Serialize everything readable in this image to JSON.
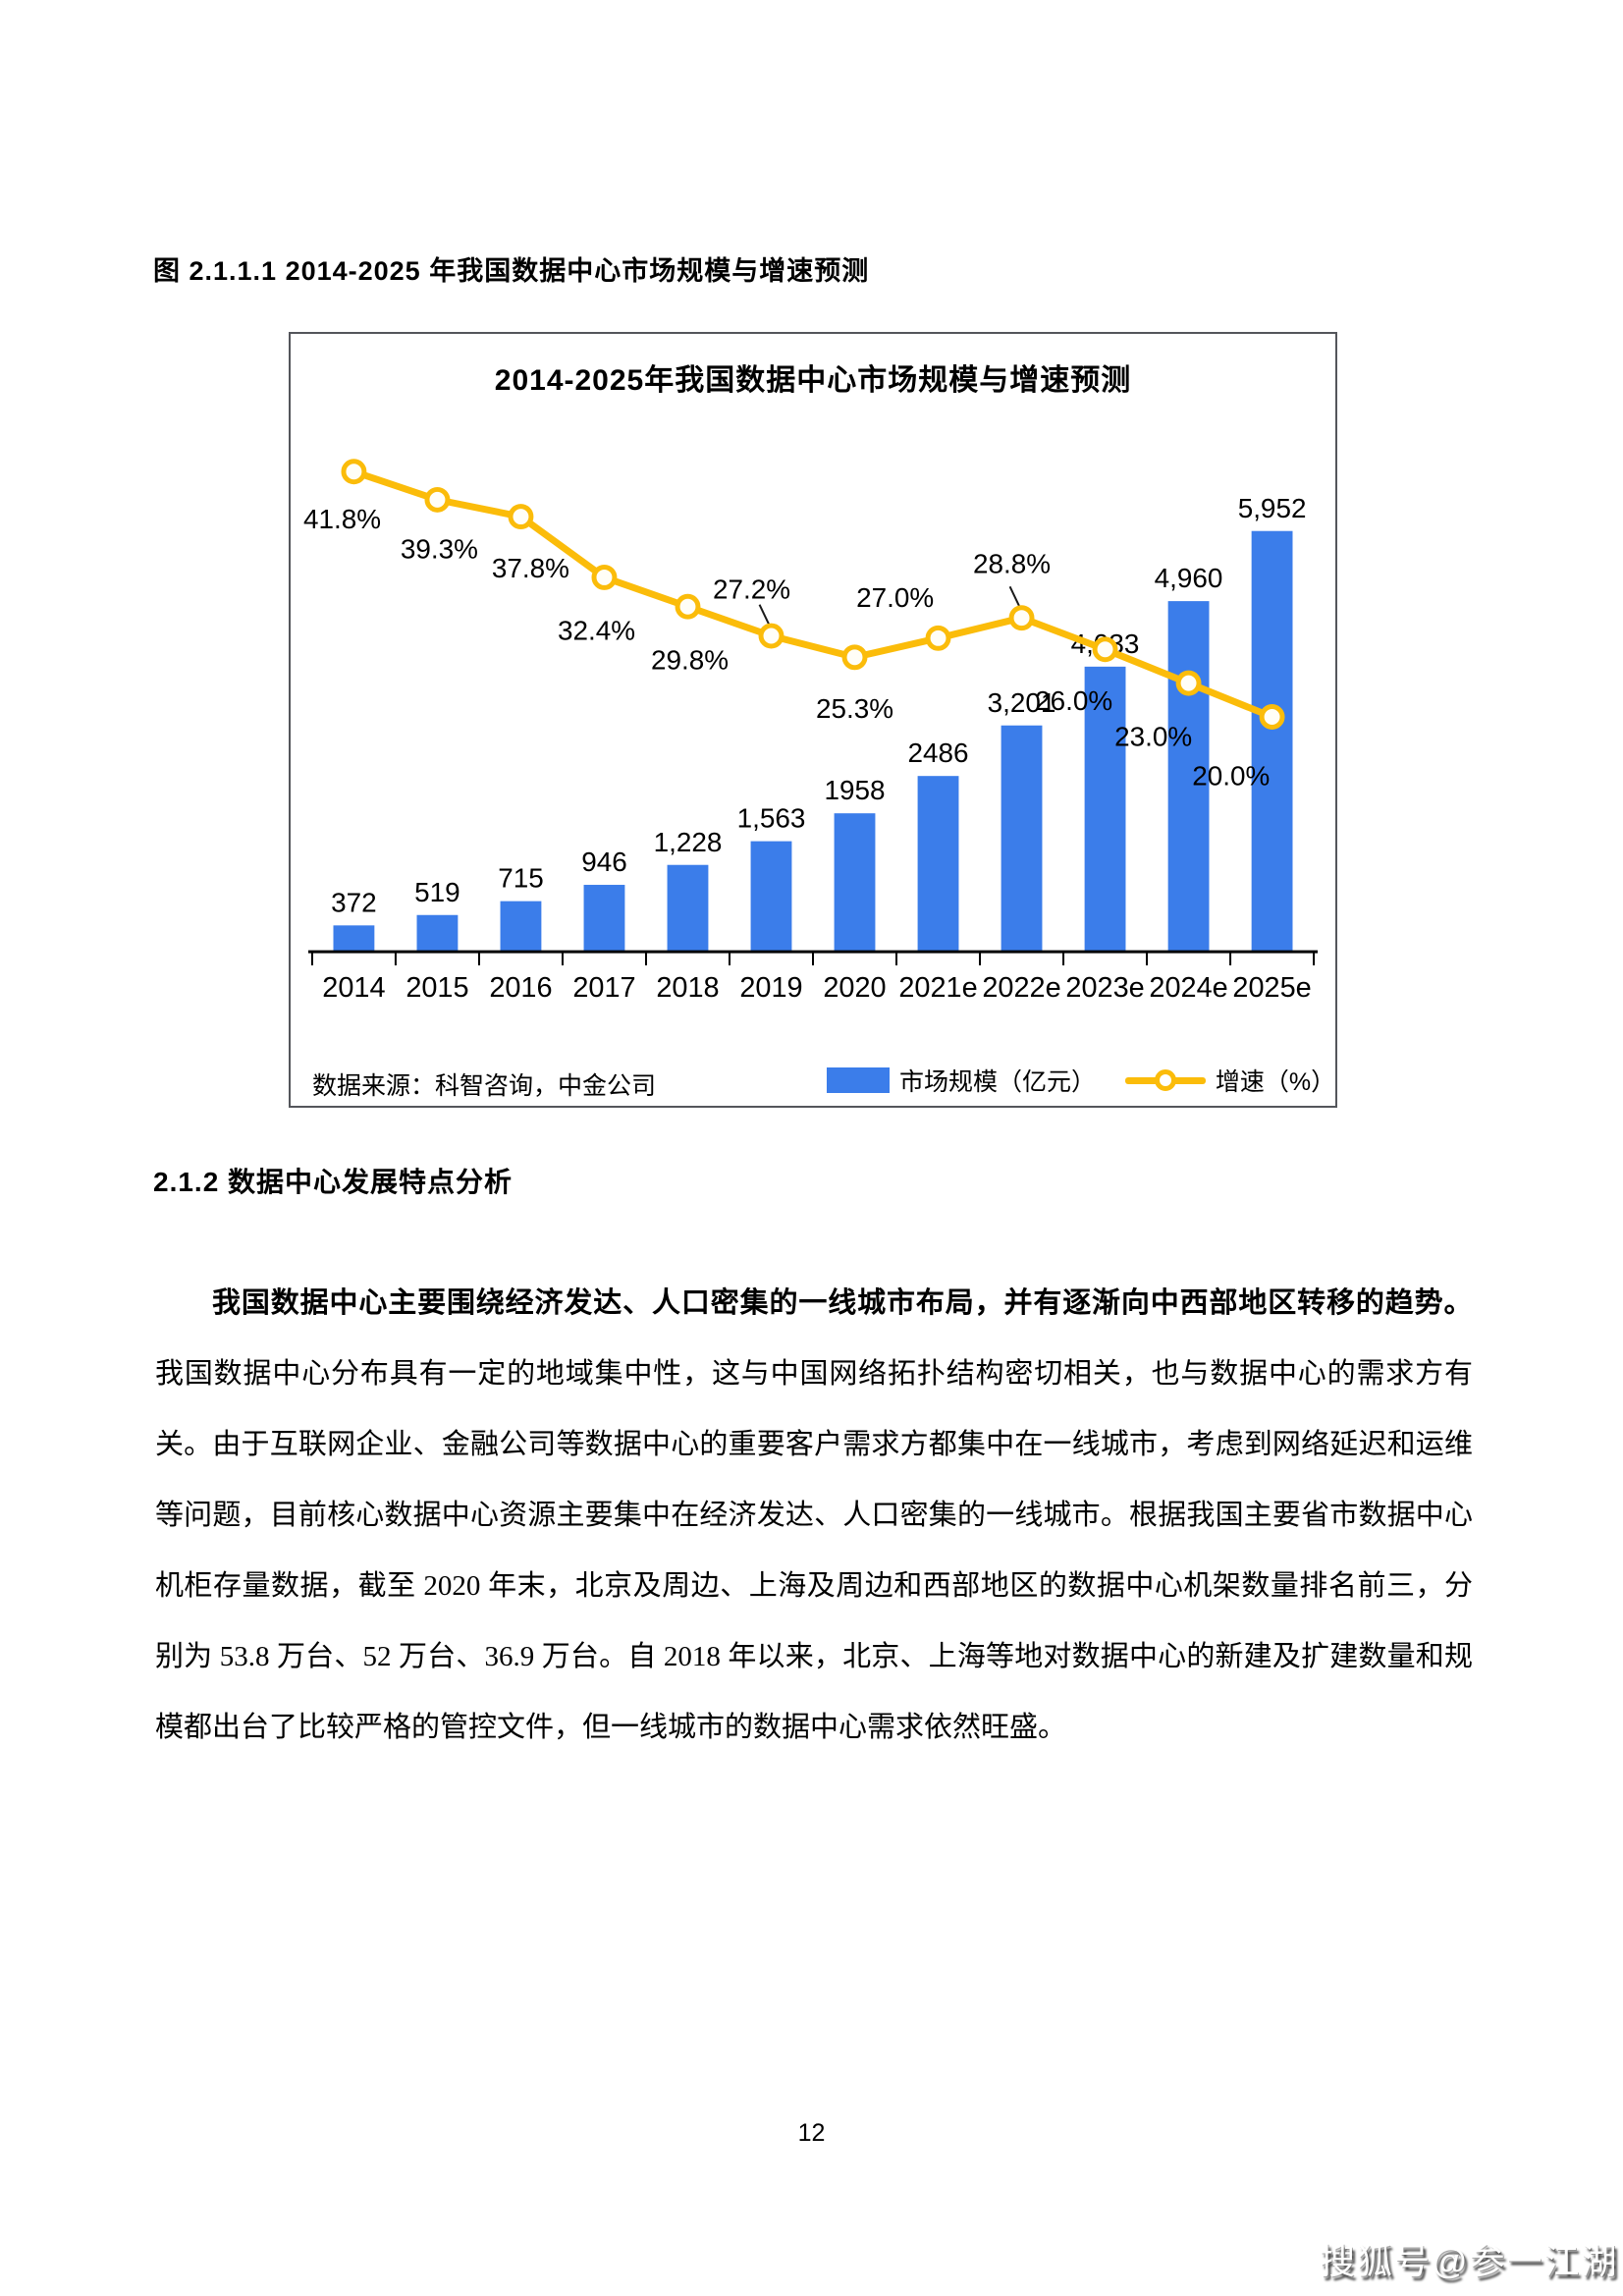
{
  "page": {
    "figure_caption": "图 2.1.1.1 2014-2025 年我国数据中心市场规模与增速预测",
    "section_heading": "2.1.2 数据中心发展特点分析",
    "paragraph": {
      "bold_lead": "我国数据中心主要围绕经济发达、人口密集的一线城市布局，并有逐渐向中西部地区转移的趋势。",
      "body": "我国数据中心分布具有一定的地域集中性，这与中国网络拓扑结构密切相关，也与数据中心的需求方有关。由于互联网企业、金融公司等数据中心的重要客户需求方都集中在一线城市，考虑到网络延迟和运维等问题，目前核心数据中心资源主要集中在经济发达、人口密集的一线城市。根据我国主要省市数据中心机柜存量数据，截至 2020 年末，北京及周边、上海及周边和西部地区的数据中心机架数量排名前三，分别为 53.8 万台、52 万台、36.9 万台。自 2018 年以来，北京、上海等地对数据中心的新建及扩建数量和规模都出台了比较严格的管控文件，但一线城市的数据中心需求依然旺盛。"
    },
    "page_number": "12",
    "watermark": "搜狐号@参一江湖"
  },
  "chart_data": {
    "type": "bar+line",
    "title": "2014-2025年我国数据中心市场规模与增速预测",
    "source": "数据来源：科智咨询，中金公司",
    "categories": [
      "2014",
      "2015",
      "2016",
      "2017",
      "2018",
      "2019",
      "2020",
      "2021e",
      "2022e",
      "2023e",
      "2024e",
      "2025e"
    ],
    "series": [
      {
        "name": "市场规模（亿元）",
        "type": "bar",
        "values": [
          372,
          519,
          715,
          946,
          1228,
          1563,
          1958,
          2486,
          3201,
          4033,
          4960,
          5952
        ],
        "labels": [
          "372",
          "519",
          "715",
          "946",
          "1,228",
          "1,563",
          "1958",
          "2486",
          "3,201",
          "4,033",
          "4,960",
          "5,952"
        ]
      },
      {
        "name": "增速（%）",
        "type": "line",
        "values": [
          41.8,
          39.3,
          37.8,
          32.4,
          29.8,
          27.2,
          25.3,
          27.0,
          28.8,
          26.0,
          23.0,
          20.0
        ],
        "labels": [
          "41.8%",
          "39.3%",
          "37.8%",
          "32.4%",
          "29.8%",
          "27.2%",
          "25.3%",
          "27.0%",
          "28.8%",
          "26.0%",
          "23.0%",
          "20.0%"
        ],
        "label_dx": [
          -12,
          2,
          10,
          -8,
          2,
          -20,
          0,
          -44,
          -10,
          -32,
          -36,
          -42
        ],
        "label_dy": [
          58,
          60,
          62,
          64,
          64,
          -38,
          62,
          -32,
          -46,
          62,
          64,
          70
        ],
        "label_leader": [
          false,
          false,
          false,
          false,
          false,
          true,
          false,
          false,
          true,
          false,
          false,
          false
        ]
      }
    ],
    "colors": {
      "bar": "#3b7dea",
      "line": "#fbbc0a",
      "axis": "#000000",
      "frame": "#54565b"
    },
    "axis": {
      "x_labels_visible": true,
      "y_axis_visible": false,
      "grid": false
    },
    "legend_position": "bottom"
  }
}
